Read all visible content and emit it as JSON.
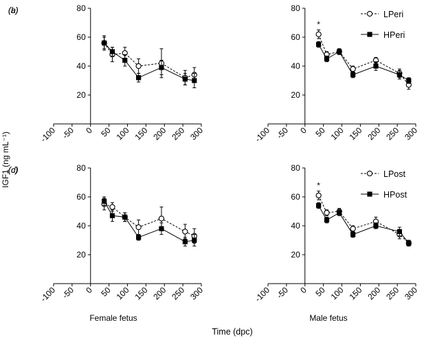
{
  "figure": {
    "ylabel": "IGF1 (ng mL⁻¹)",
    "xlabel": "Time (dpc)",
    "column_labels": [
      "Female fetus",
      "Male fetus"
    ]
  },
  "chart_data": [
    {
      "panel": "(a)",
      "type": "line",
      "xlim": [
        -100,
        300
      ],
      "ylim": [
        0,
        80
      ],
      "xticks": [
        -100,
        -50,
        0,
        50,
        100,
        150,
        200,
        250,
        300
      ],
      "yticks": [
        20,
        40,
        60,
        80
      ],
      "legend": [],
      "series": [
        {
          "name": "LPeri",
          "style": "open-circle-dashed",
          "x": [
            37,
            59,
            93,
            130,
            192,
            256,
            281
          ],
          "y": [
            56,
            48,
            49,
            40,
            42,
            32,
            34
          ],
          "err": [
            5,
            5,
            4,
            5,
            10,
            5,
            5
          ]
        },
        {
          "name": "HPeri",
          "style": "filled-square-solid",
          "x": [
            37,
            59,
            93,
            130,
            192,
            256,
            281
          ],
          "y": [
            56,
            50,
            44,
            32,
            39,
            31,
            30
          ],
          "err": [
            4,
            3,
            4,
            3,
            5,
            4,
            5
          ]
        }
      ],
      "annotations": []
    },
    {
      "panel": "(b)",
      "type": "line",
      "xlim": [
        -100,
        300
      ],
      "ylim": [
        0,
        80
      ],
      "xticks": [
        -100,
        -50,
        0,
        50,
        100,
        150,
        200,
        250,
        300
      ],
      "yticks": [
        20,
        40,
        60,
        80
      ],
      "legend": [
        "LPeri",
        "HPeri"
      ],
      "series": [
        {
          "name": "LPeri",
          "style": "open-circle-dashed",
          "x": [
            37,
            59,
            93,
            130,
            192,
            256,
            281
          ],
          "y": [
            62,
            48,
            50,
            38,
            44,
            35,
            27
          ],
          "err": [
            3,
            2,
            2,
            2,
            2,
            3,
            3
          ]
        },
        {
          "name": "HPeri",
          "style": "filled-square-solid",
          "x": [
            37,
            59,
            93,
            130,
            192,
            256,
            281
          ],
          "y": [
            55,
            45,
            50,
            34,
            40,
            34,
            30
          ],
          "err": [
            2,
            2,
            2,
            2,
            3,
            3,
            2
          ]
        }
      ],
      "annotations": [
        {
          "text": "*",
          "x": 37,
          "y": 67
        }
      ]
    },
    {
      "panel": "(c)",
      "type": "line",
      "xlim": [
        -100,
        300
      ],
      "ylim": [
        0,
        80
      ],
      "xticks": [
        -100,
        -50,
        0,
        50,
        100,
        150,
        200,
        250,
        300
      ],
      "yticks": [
        20,
        40,
        60,
        80
      ],
      "legend": [],
      "series": [
        {
          "name": "LPost",
          "style": "open-circle-dashed",
          "x": [
            37,
            59,
            93,
            130,
            192,
            256,
            281
          ],
          "y": [
            55,
            53,
            46,
            39,
            45,
            36,
            33
          ],
          "err": [
            4,
            3,
            3,
            5,
            8,
            5,
            5
          ]
        },
        {
          "name": "HPost",
          "style": "filled-square-solid",
          "x": [
            37,
            59,
            93,
            130,
            192,
            256,
            281
          ],
          "y": [
            57,
            47,
            46,
            32,
            38,
            29,
            30
          ],
          "err": [
            3,
            4,
            3,
            2,
            4,
            3,
            4
          ]
        }
      ],
      "annotations": []
    },
    {
      "panel": "(d)",
      "type": "line",
      "xlim": [
        -100,
        300
      ],
      "ylim": [
        0,
        80
      ],
      "xticks": [
        -100,
        -50,
        0,
        50,
        100,
        150,
        200,
        250,
        300
      ],
      "yticks": [
        20,
        40,
        60,
        80
      ],
      "legend": [
        "LPost",
        "HPost"
      ],
      "series": [
        {
          "name": "LPost",
          "style": "open-circle-dashed",
          "x": [
            37,
            59,
            93,
            130,
            192,
            256,
            281
          ],
          "y": [
            61,
            49,
            50,
            38,
            43,
            34,
            28
          ],
          "err": [
            3,
            2,
            2,
            2,
            3,
            3,
            2
          ]
        },
        {
          "name": "HPost",
          "style": "filled-square-solid",
          "x": [
            37,
            59,
            93,
            130,
            192,
            256,
            281
          ],
          "y": [
            54,
            44,
            49,
            34,
            40,
            36,
            28
          ],
          "err": [
            2,
            2,
            2,
            2,
            2,
            3,
            2
          ]
        }
      ],
      "annotations": [
        {
          "text": "*",
          "x": 37,
          "y": 66
        }
      ]
    }
  ]
}
